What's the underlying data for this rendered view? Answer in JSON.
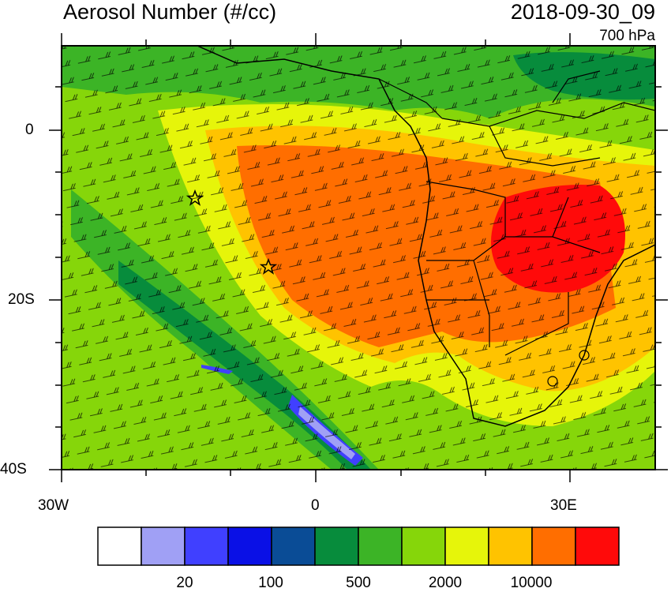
{
  "header": {
    "title": "Aerosol Number (#/cc)",
    "timestamp": "2018-09-30_09",
    "level": "700 hPa"
  },
  "axes": {
    "x_ticks": [
      {
        "label": "30W"
      },
      {
        "label": "0"
      },
      {
        "label": "30E"
      }
    ],
    "y_ticks": [
      {
        "label": "0"
      },
      {
        "label": "20S"
      },
      {
        "label": "40S"
      }
    ]
  },
  "map": {
    "region": "South Atlantic and southern Africa",
    "markers": [
      "star-marker",
      "star-marker"
    ]
  },
  "colorbar": {
    "colors": [
      "#ffffff",
      "#a0a0f5",
      "#4040ff",
      "#0a10e6",
      "#0a4c96",
      "#078c3c",
      "#3cb426",
      "#86d60a",
      "#e6f50a",
      "#ffc300",
      "#ff6e00",
      "#ff0a0a"
    ],
    "labels": [
      "20",
      "100",
      "500",
      "2000",
      "10000"
    ]
  }
}
